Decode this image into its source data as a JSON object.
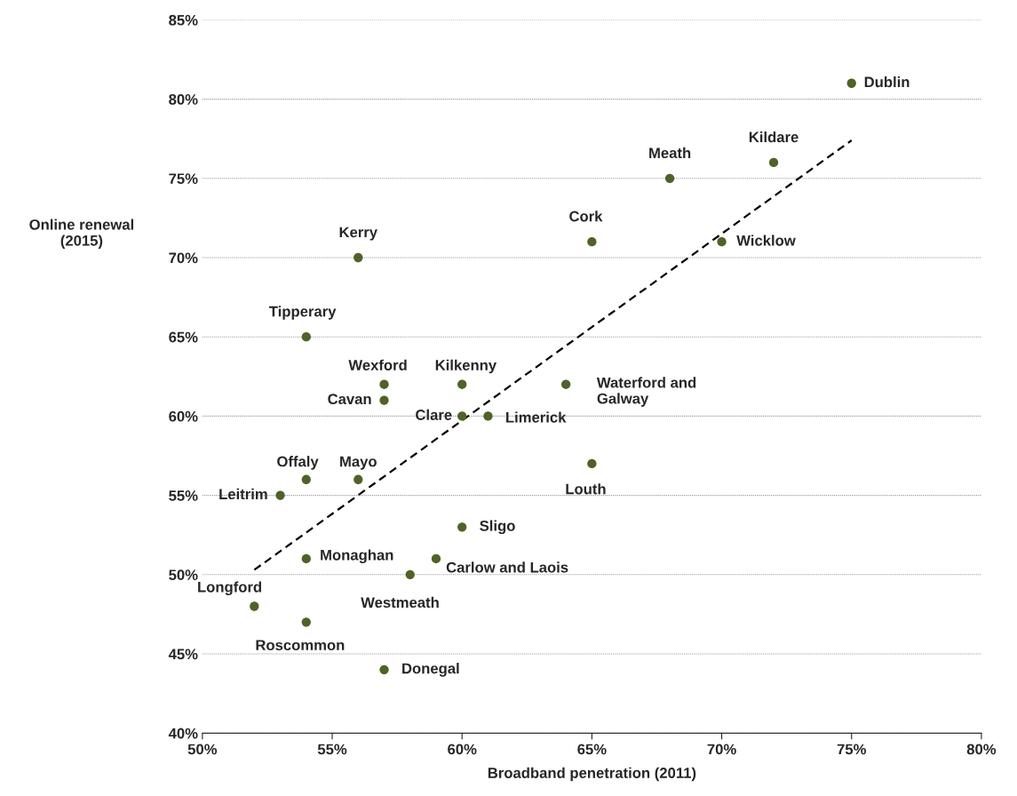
{
  "chart_data": {
    "type": "scatter",
    "xlabel": "Broadband penetration (2011)",
    "ylabel": "Online renewal\n(2015)",
    "series": [
      {
        "color": "#4f6228",
        "marker": "circle",
        "x": [
          75,
          72,
          68,
          65,
          70,
          56,
          54,
          57,
          57,
          60,
          64,
          60,
          61,
          54,
          56,
          53,
          65,
          60,
          54,
          59,
          58,
          52,
          54,
          57
        ],
        "values": [
          81,
          76,
          75,
          71,
          71,
          70,
          65,
          62,
          61,
          62,
          62,
          60,
          60,
          56,
          56,
          55,
          57,
          53,
          51,
          51,
          50,
          48,
          47,
          44
        ]
      },
      {
        "type": "line",
        "color": "#000000",
        "line_style": "dashed",
        "marker": "none",
        "x": [
          52,
          75
        ],
        "values": [
          50.3,
          77.4
        ]
      }
    ],
    "annotations": [
      {
        "text": "Dublin",
        "x": 75,
        "y": 81
      },
      {
        "text": "Kildare",
        "x": 72,
        "y": 76
      },
      {
        "text": "Meath",
        "x": 68,
        "y": 75
      },
      {
        "text": "Cork",
        "x": 65,
        "y": 71
      },
      {
        "text": "Wicklow",
        "x": 70,
        "y": 71
      },
      {
        "text": "Kerry",
        "x": 56,
        "y": 70
      },
      {
        "text": "Tipperary",
        "x": 54,
        "y": 65
      },
      {
        "text": "Wexford",
        "x": 57,
        "y": 62
      },
      {
        "text": "Cavan",
        "x": 57,
        "y": 61
      },
      {
        "text": "Kilkenny",
        "x": 60,
        "y": 62
      },
      {
        "text": "Waterford and\nGalway",
        "x": 64,
        "y": 62
      },
      {
        "text": "Clare",
        "x": 60,
        "y": 60
      },
      {
        "text": "Limerick",
        "x": 61,
        "y": 60
      },
      {
        "text": "Offaly",
        "x": 54,
        "y": 56
      },
      {
        "text": "Mayo",
        "x": 56,
        "y": 56
      },
      {
        "text": "Leitrim",
        "x": 53,
        "y": 55
      },
      {
        "text": "Louth",
        "x": 65,
        "y": 57
      },
      {
        "text": "Sligo",
        "x": 60,
        "y": 53
      },
      {
        "text": "Monaghan",
        "x": 54,
        "y": 51
      },
      {
        "text": "Carlow and Laois",
        "x": 59,
        "y": 51
      },
      {
        "text": "Westmeath",
        "x": 58,
        "y": 50
      },
      {
        "text": "Longford",
        "x": 52,
        "y": 48
      },
      {
        "text": "Roscommon",
        "x": 54,
        "y": 47
      },
      {
        "text": "Donegal",
        "x": 57,
        "y": 44
      }
    ],
    "xlim": [
      50,
      80
    ],
    "xticks": [
      {
        "value": 50,
        "label": "50%"
      },
      {
        "value": 55,
        "label": "55%"
      },
      {
        "value": 60,
        "label": "60%"
      },
      {
        "value": 65,
        "label": "65%"
      },
      {
        "value": 70,
        "label": "70%"
      },
      {
        "value": 75,
        "label": "75%"
      },
      {
        "value": 80,
        "label": "80%"
      }
    ],
    "ylim": [
      40,
      85
    ],
    "yticks": [
      {
        "value": 40,
        "label": "40%"
      },
      {
        "value": 45,
        "label": "45%"
      },
      {
        "value": 50,
        "label": "50%"
      },
      {
        "value": 55,
        "label": "55%"
      },
      {
        "value": 60,
        "label": "60%"
      },
      {
        "value": 65,
        "label": "65%"
      },
      {
        "value": 70,
        "label": "70%"
      },
      {
        "value": 75,
        "label": "75%"
      },
      {
        "value": 80,
        "label": "80%"
      },
      {
        "value": 85,
        "label": "85%"
      }
    ],
    "grid": "y",
    "legend": false
  }
}
